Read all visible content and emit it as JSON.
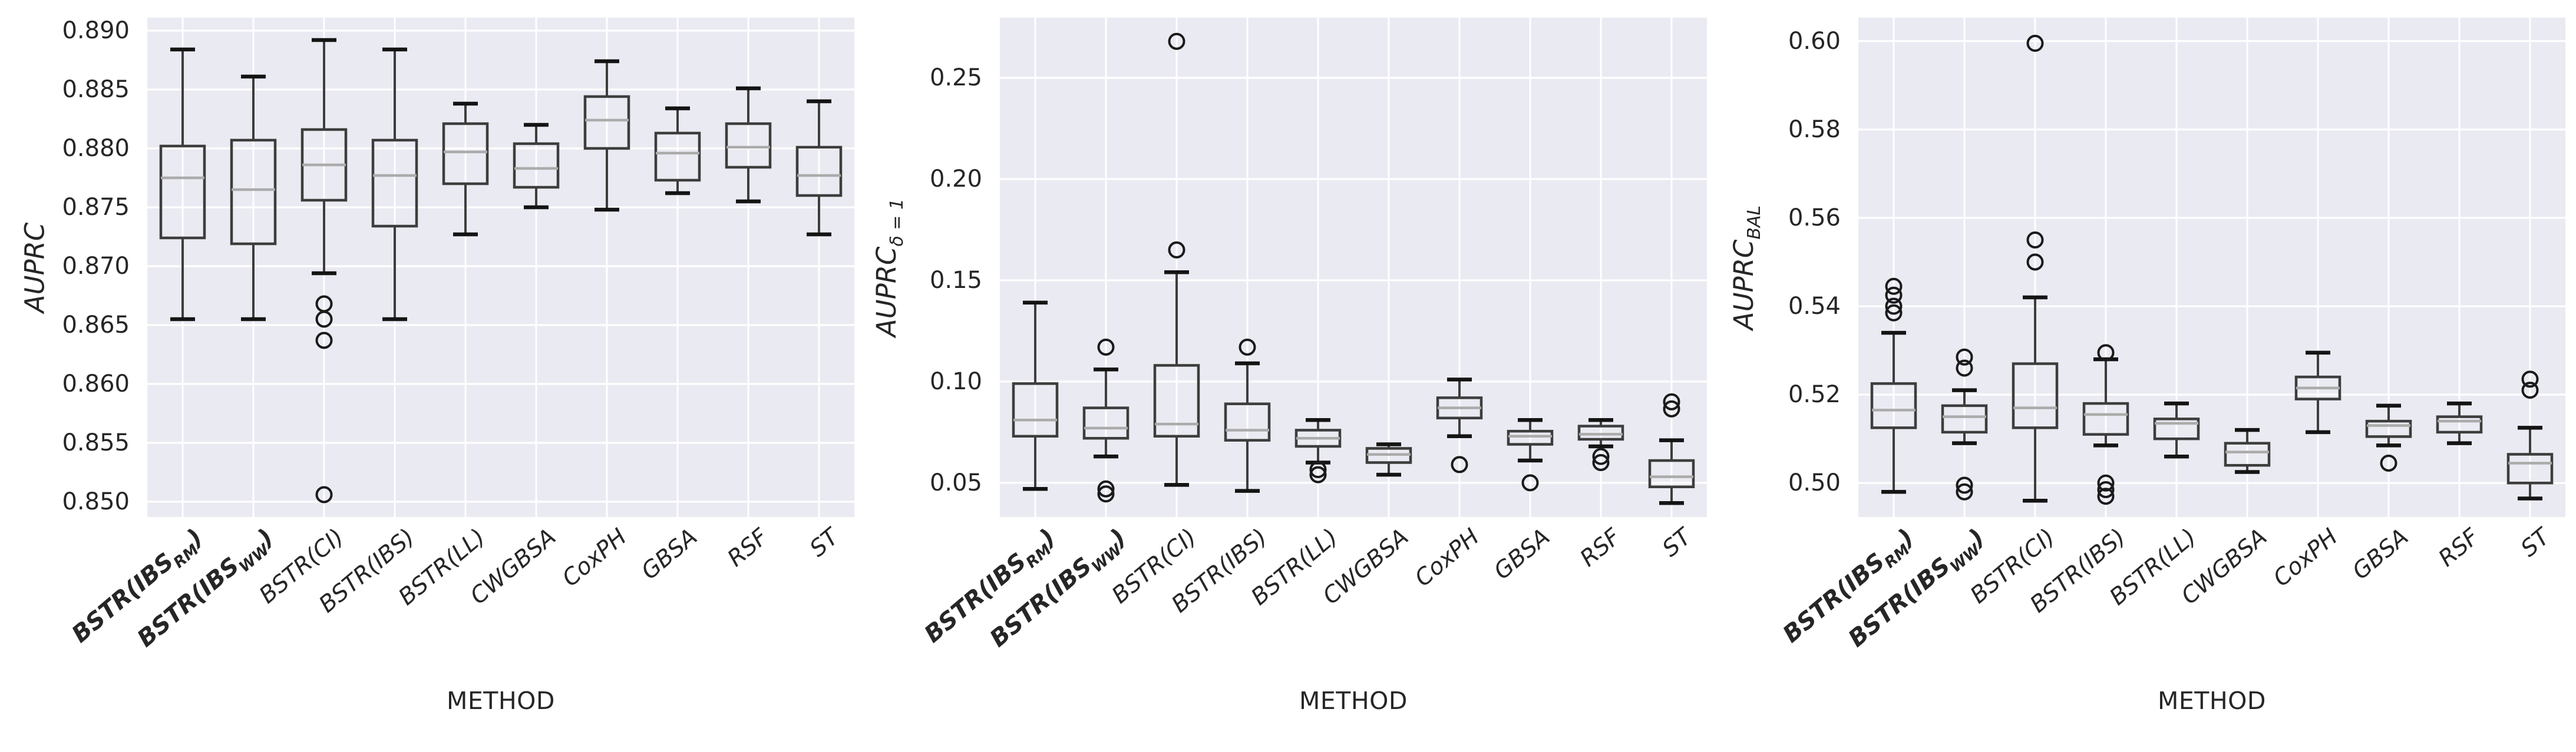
{
  "style": {
    "panel_bg": "#eaeaf2",
    "grid_color": "#ffffff",
    "box_edge_color": "#3d3d3d",
    "median_color": "#ababab",
    "cap_color": "#141414",
    "flier_color": "#1a1a1a",
    "text_color": "#262626"
  },
  "chart_data": {
    "type": "boxplot",
    "layout_hint": "three seaborn-style box plot panels side by side, white gridlines on lavender background, legend none",
    "xlabel": "METHOD",
    "categories": [
      {
        "pre": "BSTR(IBS",
        "sub": "RM",
        "post": ")",
        "bold": true
      },
      {
        "pre": "BSTR(IBS",
        "sub": "WW",
        "post": ")",
        "bold": true
      },
      {
        "pre": "BSTR(CI)",
        "sub": "",
        "post": "",
        "bold": false
      },
      {
        "pre": "BSTR(IBS)",
        "sub": "",
        "post": "",
        "bold": false
      },
      {
        "pre": "BSTR(LL)",
        "sub": "",
        "post": "",
        "bold": false
      },
      {
        "pre": "CWGBSA",
        "sub": "",
        "post": "",
        "bold": false
      },
      {
        "pre": "CoxPH",
        "sub": "",
        "post": "",
        "bold": false
      },
      {
        "pre": "GBSA",
        "sub": "",
        "post": "",
        "bold": false
      },
      {
        "pre": "RSF",
        "sub": "",
        "post": "",
        "bold": false
      },
      {
        "pre": "ST",
        "sub": "",
        "post": "",
        "bold": false
      }
    ],
    "panels": [
      {
        "id": "auprc",
        "ylabel": {
          "main": "AUPRC",
          "sub": ""
        },
        "ylim": [
          0.8487,
          0.8911
        ],
        "yticks": [
          {
            "v": 0.89,
            "label": "0.890"
          },
          {
            "v": 0.885,
            "label": "0.885"
          },
          {
            "v": 0.88,
            "label": "0.880"
          },
          {
            "v": 0.875,
            "label": "0.875"
          },
          {
            "v": 0.87,
            "label": "0.870"
          },
          {
            "v": 0.865,
            "label": "0.865"
          },
          {
            "v": 0.86,
            "label": "0.860"
          },
          {
            "v": 0.855,
            "label": "0.855"
          },
          {
            "v": 0.85,
            "label": "0.850"
          }
        ],
        "boxes": [
          {
            "lo": 0.8655,
            "q1": 0.8724,
            "med": 0.8775,
            "q3": 0.8802,
            "hi": 0.8884,
            "fliers": []
          },
          {
            "lo": 0.8655,
            "q1": 0.8719,
            "med": 0.8765,
            "q3": 0.8807,
            "hi": 0.8861,
            "fliers": []
          },
          {
            "lo": 0.8694,
            "q1": 0.8756,
            "med": 0.8786,
            "q3": 0.8816,
            "hi": 0.8892,
            "fliers": [
              0.8668,
              0.8655,
              0.8637,
              0.8506
            ]
          },
          {
            "lo": 0.8655,
            "q1": 0.8734,
            "med": 0.8777,
            "q3": 0.8807,
            "hi": 0.8884,
            "fliers": []
          },
          {
            "lo": 0.8727,
            "q1": 0.877,
            "med": 0.8797,
            "q3": 0.8821,
            "hi": 0.8838,
            "fliers": []
          },
          {
            "lo": 0.875,
            "q1": 0.8767,
            "med": 0.8783,
            "q3": 0.8804,
            "hi": 0.882,
            "fliers": []
          },
          {
            "lo": 0.8748,
            "q1": 0.88,
            "med": 0.8824,
            "q3": 0.8844,
            "hi": 0.8874,
            "fliers": []
          },
          {
            "lo": 0.8762,
            "q1": 0.8773,
            "med": 0.8796,
            "q3": 0.8813,
            "hi": 0.8834,
            "fliers": []
          },
          {
            "lo": 0.8755,
            "q1": 0.8784,
            "med": 0.8801,
            "q3": 0.8821,
            "hi": 0.8851,
            "fliers": []
          },
          {
            "lo": 0.8727,
            "q1": 0.876,
            "med": 0.8777,
            "q3": 0.8801,
            "hi": 0.884,
            "fliers": []
          }
        ]
      },
      {
        "id": "auprc-delta-1",
        "ylabel": {
          "main": "AUPRC",
          "sub": "δ = 1"
        },
        "ylim": [
          0.0331,
          0.2797
        ],
        "yticks": [
          {
            "v": 0.25,
            "label": "0.25"
          },
          {
            "v": 0.2,
            "label": "0.20"
          },
          {
            "v": 0.15,
            "label": "0.15"
          },
          {
            "v": 0.1,
            "label": "0.10"
          },
          {
            "v": 0.05,
            "label": "0.05"
          }
        ],
        "boxes": [
          {
            "lo": 0.047,
            "q1": 0.073,
            "med": 0.081,
            "q3": 0.099,
            "hi": 0.139,
            "fliers": []
          },
          {
            "lo": 0.063,
            "q1": 0.072,
            "med": 0.077,
            "q3": 0.087,
            "hi": 0.106,
            "fliers": [
              0.117,
              0.047,
              0.0445
            ]
          },
          {
            "lo": 0.049,
            "q1": 0.073,
            "med": 0.079,
            "q3": 0.108,
            "hi": 0.154,
            "fliers": [
              0.268,
              0.165
            ]
          },
          {
            "lo": 0.046,
            "q1": 0.071,
            "med": 0.076,
            "q3": 0.089,
            "hi": 0.109,
            "fliers": [
              0.117
            ]
          },
          {
            "lo": 0.06,
            "q1": 0.068,
            "med": 0.072,
            "q3": 0.076,
            "hi": 0.081,
            "fliers": [
              0.0565,
              0.054
            ]
          },
          {
            "lo": 0.054,
            "q1": 0.06,
            "med": 0.064,
            "q3": 0.067,
            "hi": 0.069,
            "fliers": []
          },
          {
            "lo": 0.073,
            "q1": 0.082,
            "med": 0.087,
            "q3": 0.092,
            "hi": 0.101,
            "fliers": [
              0.059
            ]
          },
          {
            "lo": 0.061,
            "q1": 0.069,
            "med": 0.073,
            "q3": 0.0755,
            "hi": 0.081,
            "fliers": [
              0.05
            ]
          },
          {
            "lo": 0.068,
            "q1": 0.0715,
            "med": 0.074,
            "q3": 0.078,
            "hi": 0.081,
            "fliers": [
              0.063,
              0.06
            ]
          },
          {
            "lo": 0.04,
            "q1": 0.048,
            "med": 0.053,
            "q3": 0.061,
            "hi": 0.071,
            "fliers": [
              0.09,
              0.0865
            ]
          }
        ]
      },
      {
        "id": "auprc-bal",
        "ylabel": {
          "main": "AUPRC",
          "sub": "BAL"
        },
        "ylim": [
          0.4923,
          0.6053
        ],
        "yticks": [
          {
            "v": 0.6,
            "label": "0.60"
          },
          {
            "v": 0.58,
            "label": "0.58"
          },
          {
            "v": 0.56,
            "label": "0.56"
          },
          {
            "v": 0.54,
            "label": "0.54"
          },
          {
            "v": 0.52,
            "label": "0.52"
          },
          {
            "v": 0.5,
            "label": "0.50"
          }
        ],
        "boxes": [
          {
            "lo": 0.498,
            "q1": 0.5125,
            "med": 0.5165,
            "q3": 0.5225,
            "hi": 0.534,
            "fliers": [
              0.5445,
              0.5425,
              0.54,
              0.5385
            ]
          },
          {
            "lo": 0.509,
            "q1": 0.5115,
            "med": 0.515,
            "q3": 0.5175,
            "hi": 0.521,
            "fliers": [
              0.5285,
              0.526,
              0.4995,
              0.498
            ]
          },
          {
            "lo": 0.496,
            "q1": 0.5125,
            "med": 0.517,
            "q3": 0.527,
            "hi": 0.542,
            "fliers": [
              0.5995,
              0.555,
              0.55
            ]
          },
          {
            "lo": 0.5085,
            "q1": 0.511,
            "med": 0.5155,
            "q3": 0.518,
            "hi": 0.528,
            "fliers": [
              0.5295,
              0.5,
              0.4985,
              0.497
            ]
          },
          {
            "lo": 0.506,
            "q1": 0.51,
            "med": 0.5135,
            "q3": 0.5145,
            "hi": 0.518,
            "fliers": []
          },
          {
            "lo": 0.5025,
            "q1": 0.504,
            "med": 0.507,
            "q3": 0.509,
            "hi": 0.512,
            "fliers": []
          },
          {
            "lo": 0.5115,
            "q1": 0.519,
            "med": 0.5215,
            "q3": 0.524,
            "hi": 0.5295,
            "fliers": []
          },
          {
            "lo": 0.5085,
            "q1": 0.5105,
            "med": 0.513,
            "q3": 0.514,
            "hi": 0.5175,
            "fliers": [
              0.5045
            ]
          },
          {
            "lo": 0.509,
            "q1": 0.5115,
            "med": 0.514,
            "q3": 0.515,
            "hi": 0.518,
            "fliers": []
          },
          {
            "lo": 0.4965,
            "q1": 0.5,
            "med": 0.5045,
            "q3": 0.5065,
            "hi": 0.5125,
            "fliers": [
              0.5235,
              0.521
            ]
          }
        ]
      }
    ]
  }
}
